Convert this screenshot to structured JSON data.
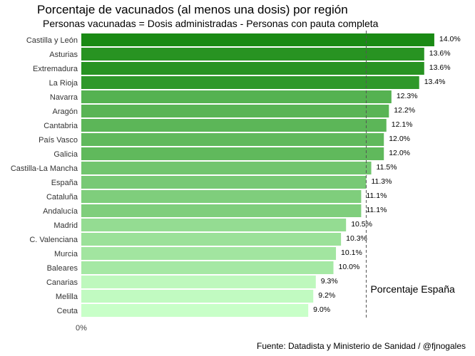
{
  "chart_data": {
    "type": "bar",
    "orientation": "horizontal",
    "title": "Porcentaje de vacunados (al menos una dosis) por región",
    "subtitle": "Personas vacunadas = Dosis administradas - Personas con pauta completa",
    "caption": "Fuente: Datadista y Ministerio de Sanidad / @fjnogales",
    "categories": [
      "Castilla y León",
      "Asturias",
      "Extremadura",
      "La Rioja",
      "Navarra",
      "Aragón",
      "Cantabria",
      "País Vasco",
      "Galicia",
      "Castilla-La Mancha",
      "España",
      "Cataluña",
      "Andalucía",
      "Madrid",
      "C. Valenciana",
      "Murcia",
      "Baleares",
      "Canarias",
      "Melilla",
      "Ceuta"
    ],
    "values": [
      14.0,
      13.6,
      13.6,
      13.4,
      12.3,
      12.2,
      12.1,
      12.0,
      12.0,
      11.5,
      11.3,
      11.1,
      11.1,
      10.5,
      10.3,
      10.1,
      10.0,
      9.3,
      9.2,
      9.0
    ],
    "value_labels": [
      "14.0%",
      "13.6%",
      "13.6%",
      "13.4%",
      "12.3%",
      "12.2%",
      "12.1%",
      "12.0%",
      "12.0%",
      "11.5%",
      "11.3%",
      "11.1%",
      "11.1%",
      "10.5%",
      "10.3%",
      "10.1%",
      "10.0%",
      "9.3%",
      "9.2%",
      "9.0%"
    ],
    "x_tick_labels": [
      "0%"
    ],
    "xlim": [
      0,
      14.2
    ],
    "reference_line": {
      "value": 11.3,
      "label": "Porcentaje España",
      "style": "dashed"
    },
    "color_scale": {
      "low": "#c8ffc8",
      "high": "#1a8a14"
    },
    "grid": false,
    "legend": "none"
  }
}
